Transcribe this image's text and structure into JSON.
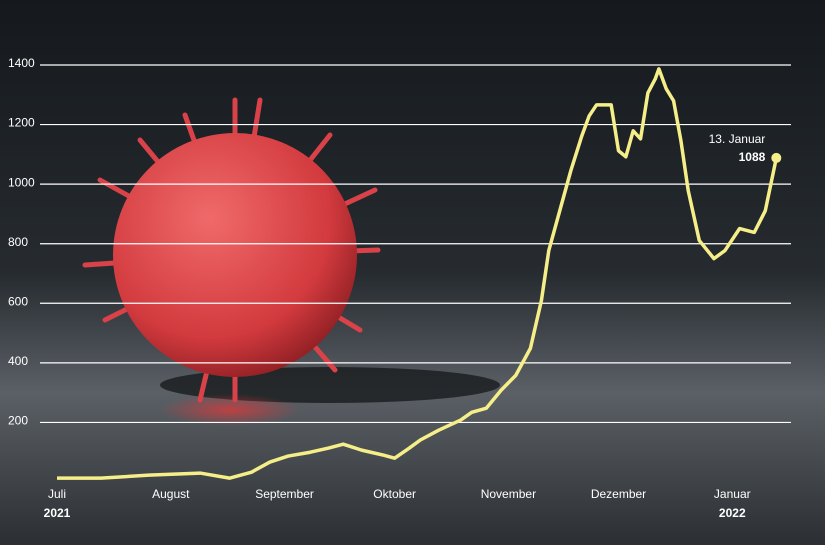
{
  "chart_data": {
    "type": "line",
    "x": [
      0,
      12,
      25,
      39,
      47,
      53,
      58,
      63,
      69,
      74,
      78,
      83,
      89,
      92,
      96,
      99,
      104,
      110,
      113,
      117,
      121,
      125,
      129,
      132,
      134,
      137,
      140,
      143,
      145,
      147,
      151,
      153,
      155,
      157,
      159,
      161,
      163,
      164,
      166,
      168,
      170,
      172,
      175,
      179,
      182,
      186,
      190,
      193,
      196
    ],
    "values": [
      13,
      13,
      23,
      30,
      13,
      33,
      67,
      87,
      100,
      114,
      127,
      107,
      90,
      80,
      114,
      141,
      174,
      208,
      234,
      248,
      308,
      358,
      449,
      610,
      777,
      911,
      1045,
      1162,
      1229,
      1266,
      1266,
      1112,
      1092,
      1179,
      1152,
      1306,
      1353,
      1387,
      1320,
      1280,
      1146,
      978,
      811,
      750,
      777,
      851,
      838,
      911,
      1088
    ],
    "color": "#f6ee88",
    "xlim": [
      -3,
      200
    ],
    "xticks": [
      {
        "value": 0,
        "label": "Juli"
      },
      {
        "value": 31,
        "label": "August"
      },
      {
        "value": 62,
        "label": "September"
      },
      {
        "value": 92,
        "label": "Oktober"
      },
      {
        "value": 123,
        "label": "November"
      },
      {
        "value": 153,
        "label": "Dezember"
      },
      {
        "value": 184,
        "label": "Januar"
      }
    ],
    "x_year_labels": [
      {
        "value": 0,
        "label": "2021"
      },
      {
        "value": 184,
        "label": "2022"
      }
    ],
    "ylim": [
      0,
      1400
    ],
    "yticks": [
      200,
      400,
      600,
      800,
      1000,
      1200,
      1400
    ],
    "grid": true,
    "annotation": "13. Januar"
  }
}
